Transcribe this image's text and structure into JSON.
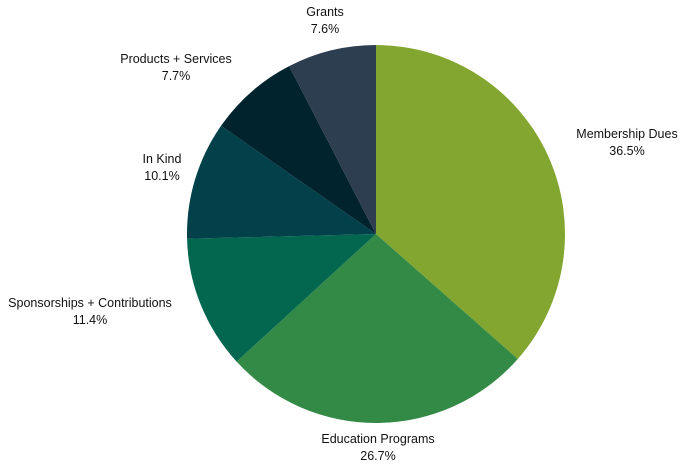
{
  "chart_data": {
    "type": "pie",
    "title": "",
    "start": "12 o'clock",
    "direction": "clockwise",
    "slices": [
      {
        "label": "Membership Dues",
        "value": 36.5,
        "display": "36.5%",
        "color": "#82a62f"
      },
      {
        "label": "Education Programs",
        "value": 26.7,
        "display": "26.7%",
        "color": "#338a46"
      },
      {
        "label": "Sponsorships + Contributions",
        "value": 11.4,
        "display": "11.4%",
        "color": "#03664f"
      },
      {
        "label": "In Kind",
        "value": 10.1,
        "display": "10.1%",
        "color": "#02404a"
      },
      {
        "label": "Products + Services",
        "value": 7.7,
        "display": "7.7%",
        "color": "#01232e"
      },
      {
        "label": "Grants",
        "value": 7.6,
        "display": "7.6%",
        "color": "#2c3e50"
      }
    ]
  }
}
